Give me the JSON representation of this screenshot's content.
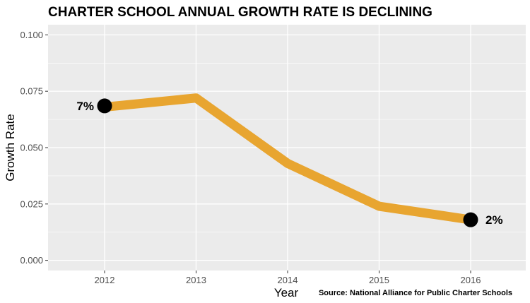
{
  "chart_data": {
    "type": "line",
    "title": "CHARTER SCHOOL ANNUAL GROWTH RATE IS DECLINING",
    "xlabel": "Year",
    "ylabel": "Growth Rate",
    "source": "Source: National Alliance for Public Charter Schools",
    "x": [
      "2012",
      "2013",
      "2014",
      "2015",
      "2016"
    ],
    "series": [
      {
        "values": [
          0.068,
          0.072,
          0.043,
          0.024,
          0.018
        ],
        "color": "#E8A530"
      }
    ],
    "ylim": [
      -0.0045,
      0.1045
    ],
    "yticks": [
      0.0,
      0.025,
      0.05,
      0.075,
      0.1
    ],
    "ytick_labels": [
      "0.000",
      "0.025",
      "0.050",
      "0.075",
      "0.100"
    ],
    "highlighted_points": [
      {
        "x": "2012",
        "value": 0.0685,
        "label": "7%"
      },
      {
        "x": "2016",
        "value": 0.018,
        "label": "2%"
      }
    ],
    "grid": true,
    "panel_background": "#EBEBEB",
    "grid_color": "#FFFFFF",
    "marker_color": "#000000"
  }
}
